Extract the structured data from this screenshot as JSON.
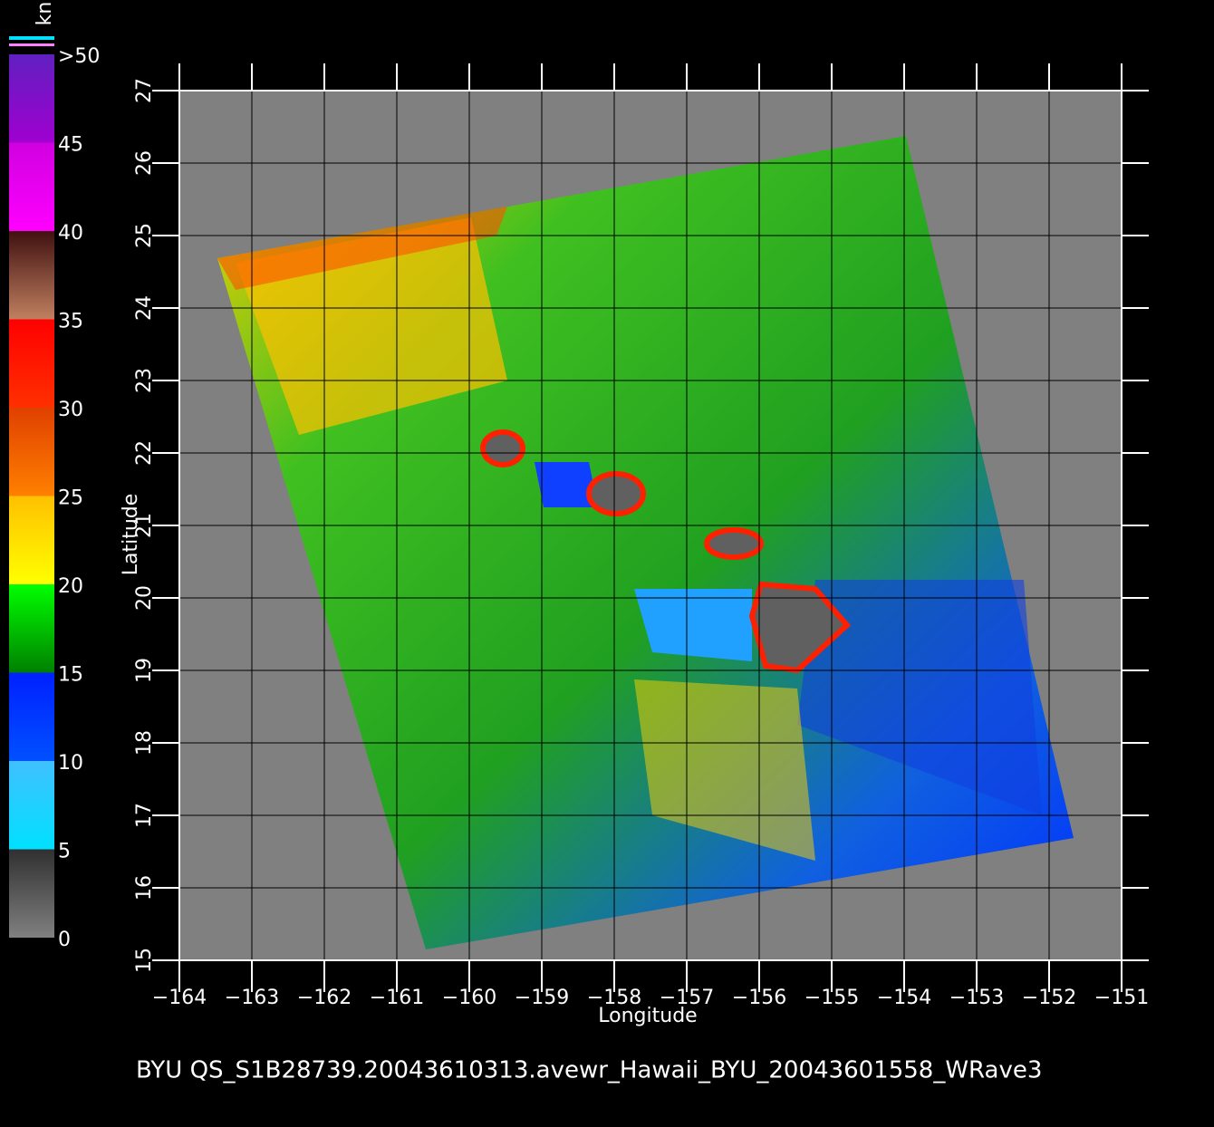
{
  "chart_data": {
    "type": "map",
    "x_label": "Longitude",
    "y_label": "Latitude",
    "xlim": [
      -164,
      -151
    ],
    "ylim": [
      15,
      27
    ],
    "xticks": [
      {
        "value": -164,
        "label": "−164"
      },
      {
        "value": -163,
        "label": "−163"
      },
      {
        "value": -162,
        "label": "−162"
      },
      {
        "value": -161,
        "label": "−161"
      },
      {
        "value": -160,
        "label": "−160"
      },
      {
        "value": -159,
        "label": "−159"
      },
      {
        "value": -158,
        "label": "−158"
      },
      {
        "value": -157,
        "label": "−157"
      },
      {
        "value": -156,
        "label": "−156"
      },
      {
        "value": -155,
        "label": "−155"
      },
      {
        "value": -154,
        "label": "−154"
      },
      {
        "value": -153,
        "label": "−153"
      },
      {
        "value": -152,
        "label": "−152"
      },
      {
        "value": -151,
        "label": "−151"
      }
    ],
    "yticks": [
      15,
      16,
      17,
      18,
      19,
      20,
      21,
      22,
      23,
      24,
      25,
      26,
      27
    ],
    "grid": true,
    "colorbar": {
      "unit": "kn",
      "lim": [
        0,
        50
      ],
      "ticks": [
        0,
        5,
        10,
        15,
        20,
        25,
        30,
        35,
        40,
        45,
        {
          "value": 50,
          "label": ">50"
        }
      ],
      "colors": [
        [
          "#808080",
          "#303030"
        ],
        [
          "#00e0ff",
          "#40c0ff"
        ],
        [
          "#0050ff",
          "#0020ff"
        ],
        [
          "#008000",
          "#00ff00"
        ],
        [
          "#ffff00",
          "#ffc000"
        ],
        [
          "#ff8000",
          "#e04000"
        ],
        [
          "#ff3000",
          "#ff0000"
        ],
        [
          "#c08060",
          "#401010"
        ],
        [
          "#ff00ff",
          "#d000e0"
        ],
        [
          "#a000d0",
          "#6020c0"
        ]
      ]
    },
    "footer": "BYU  QS_S1B28739.20043610313.avewr_Hawaii_BYU_20043601558_WRave3"
  }
}
